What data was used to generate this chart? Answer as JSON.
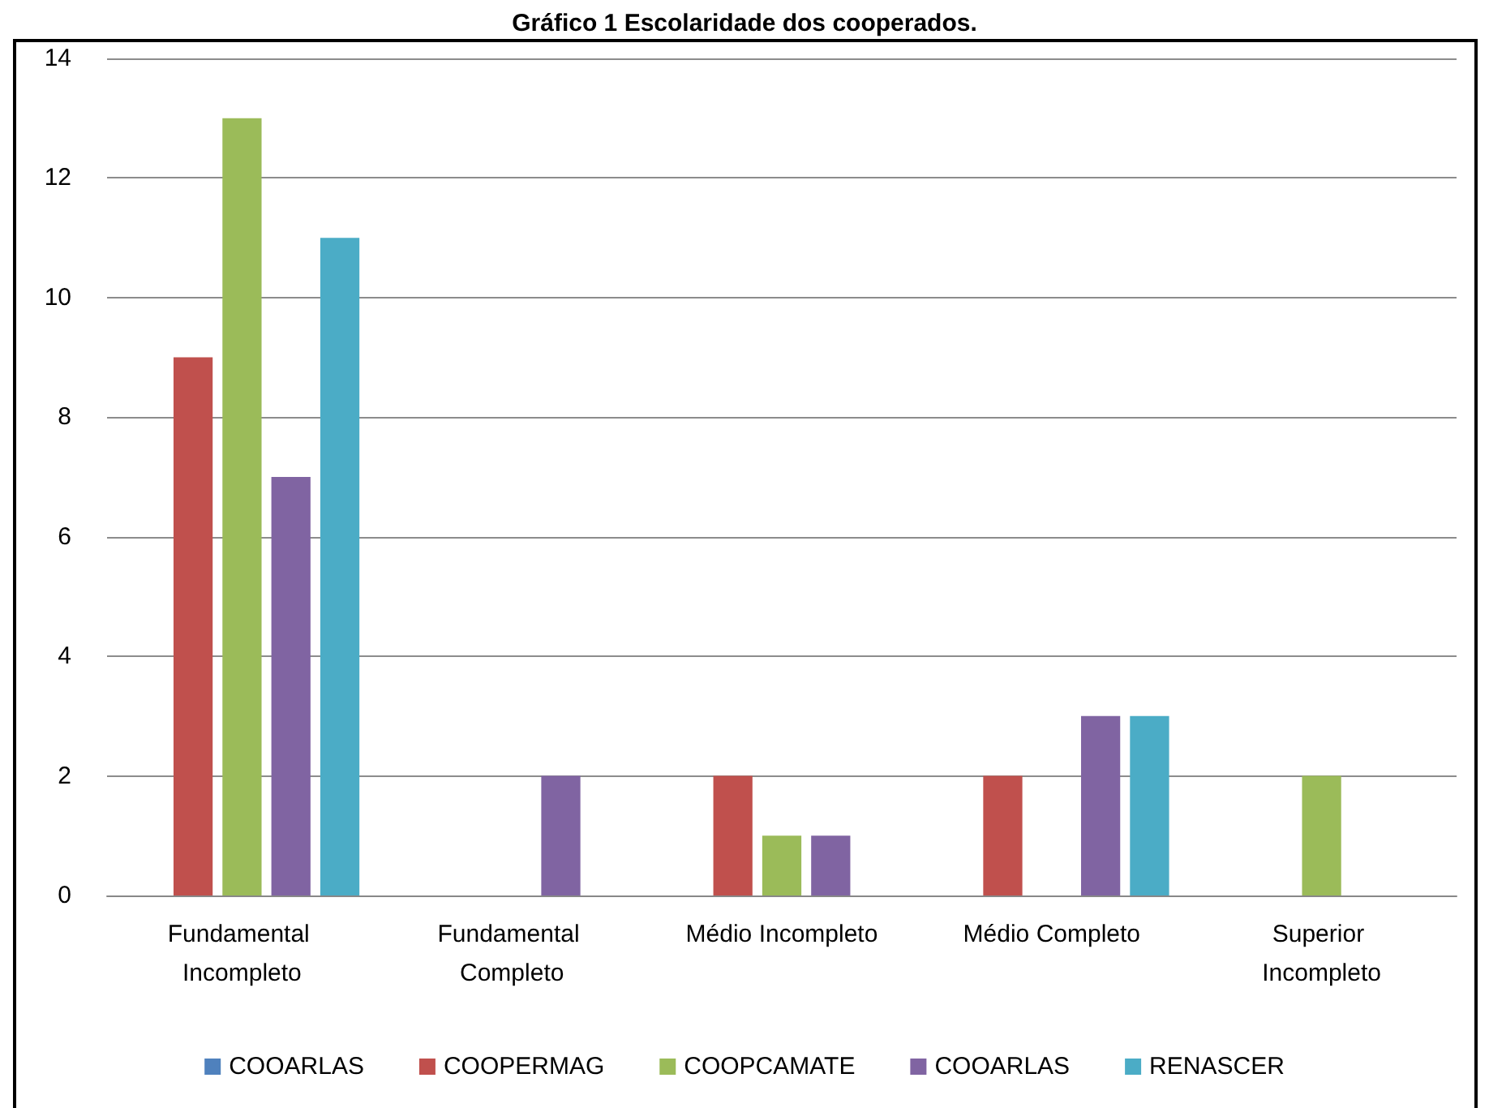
{
  "chart_data": {
    "type": "bar",
    "title": "Gráfico 1 Escolaridade dos cooperados.",
    "categories": [
      "Fundamental Incompleto",
      "Fundamental Completo",
      "Médio Incompleto",
      "Médio Completo",
      "Superior Incompleto"
    ],
    "series": [
      {
        "name": "COOARLAS",
        "color": "#4f81bd",
        "values": [
          null,
          null,
          null,
          null,
          null
        ]
      },
      {
        "name": "COOPERMAG",
        "color": "#c0504d",
        "values": [
          9,
          null,
          2,
          2,
          null
        ]
      },
      {
        "name": "COOPCAMATE",
        "color": "#9bbb59",
        "values": [
          13,
          null,
          1,
          null,
          2
        ]
      },
      {
        "name": "COOARLAS",
        "color": "#8064a2",
        "values": [
          7,
          2,
          1,
          3,
          null
        ]
      },
      {
        "name": "RENASCER",
        "color": "#4bacc6",
        "values": [
          11,
          null,
          null,
          3,
          null
        ]
      }
    ],
    "ylim": [
      0,
      14
    ],
    "yticks": [
      0,
      2,
      4,
      6,
      8,
      10,
      12,
      14
    ],
    "grid": "y",
    "legend": "bottom"
  }
}
